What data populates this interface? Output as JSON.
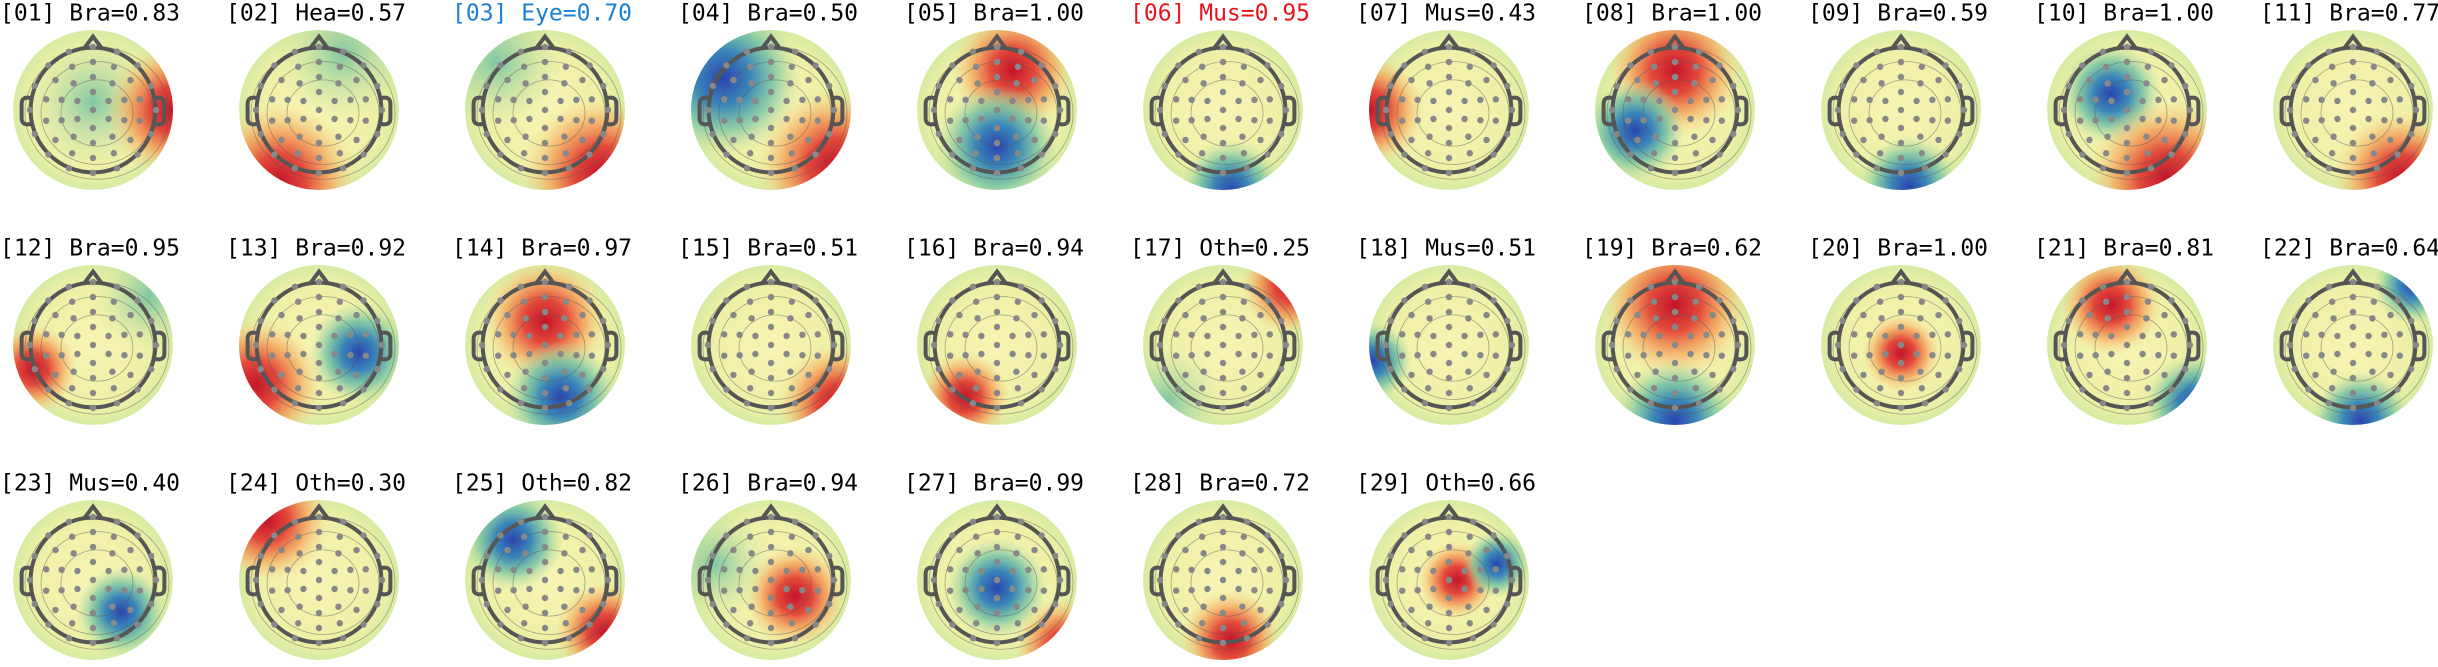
{
  "components": [
    {
      "label": "[01] Bra=0.83"
    },
    {
      "label": "[02] Hea=0.57"
    },
    {
      "label": "[03] Eye=0.70",
      "color": "#1a7fd8"
    },
    {
      "label": "[04] Bra=0.50"
    },
    {
      "label": "[05] Bra=1.00"
    },
    {
      "label": "[06] Mus=0.95",
      "color": "#e8141e"
    },
    {
      "label": "[07] Mus=0.43"
    },
    {
      "label": "[08] Bra=1.00"
    },
    {
      "label": "[09] Bra=0.59"
    },
    {
      "label": "[10] Bra=1.00"
    },
    {
      "label": "[11] Bra=0.77"
    },
    {
      "label": "[12] Bra=0.95"
    },
    {
      "label": "[13] Bra=0.92"
    },
    {
      "label": "[14] Bra=0.97"
    },
    {
      "label": "[15] Bra=0.51"
    },
    {
      "label": "[16] Bra=0.94"
    },
    {
      "label": "[17] Oth=0.25"
    },
    {
      "label": "[18] Mus=0.51"
    },
    {
      "label": "[19] Bra=0.62"
    },
    {
      "label": "[20] Bra=1.00"
    },
    {
      "label": "[21] Bra=0.81"
    },
    {
      "label": "[22] Bra=0.64"
    },
    {
      "label": "[23] Mus=0.40"
    },
    {
      "label": "[24] Oth=0.30"
    },
    {
      "label": "[25] Oth=0.82"
    },
    {
      "label": "[26] Bra=0.94"
    },
    {
      "label": "[27] Bra=0.99"
    },
    {
      "label": "[28] Bra=0.72"
    },
    {
      "label": "[29] Oth=0.66"
    }
  ]
}
